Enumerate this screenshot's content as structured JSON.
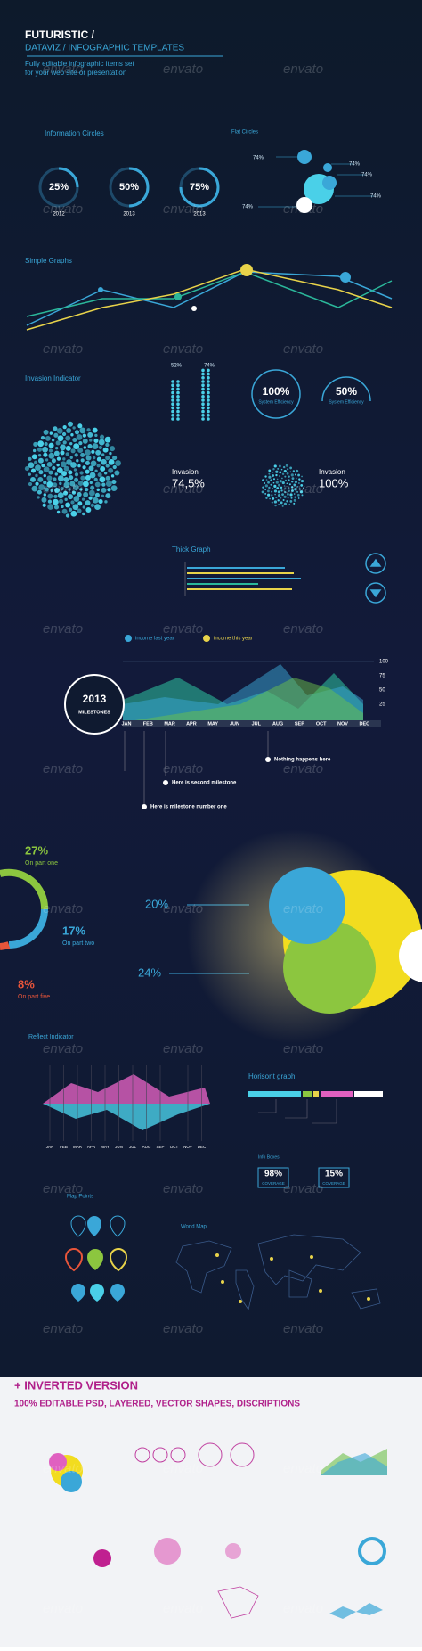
{
  "header": {
    "title": "FUTURISTIC /",
    "subtitle": "DATAVIZ / INFOGRAPHIC TEMPLATES",
    "tagline": [
      "Fully editable infographic items set",
      "for your web site or presentation"
    ]
  },
  "watermark": "envato",
  "info_circles": {
    "title": "Information Circles",
    "items": [
      {
        "label": "25%",
        "year": "2012"
      },
      {
        "label": "50%",
        "year": "2013"
      },
      {
        "label": "75%",
        "year": "2013"
      }
    ]
  },
  "flat_circles": {
    "title": "Flat Circles",
    "labels": [
      "74%",
      "74%",
      "74%",
      "74%",
      "74%"
    ]
  },
  "simple_graphs": {
    "title": "Simple Graphs"
  },
  "invasion": {
    "title": "Invasion Indicator",
    "bars": [
      "52%",
      "74%"
    ],
    "efficiency": [
      {
        "value": "100%",
        "label": "System Efficiency"
      },
      {
        "value": "50%",
        "label": "System Efficiency"
      }
    ],
    "items": [
      {
        "label": "Invasion",
        "value": "74,5%"
      },
      {
        "label": "Invasion",
        "value": "100%"
      }
    ]
  },
  "thick_graph": {
    "title": "Thick Graph"
  },
  "milestones": {
    "legend": [
      "income last year",
      "income this year"
    ],
    "axis": [
      100,
      75,
      50,
      25
    ],
    "months": [
      "JAN",
      "FEB",
      "MAR",
      "APR",
      "MAY",
      "JUN",
      "JUL",
      "AUG",
      "SEP",
      "OCT",
      "NOV",
      "DEC"
    ],
    "year": "2013",
    "label": "MILESTONES",
    "notes": [
      "Nothing happens here",
      "Here is second milestone",
      "Here is milestone number one"
    ]
  },
  "parts": {
    "items": [
      {
        "value": "27%",
        "label": "On part one"
      },
      {
        "value": "17%",
        "label": "On part two"
      },
      {
        "value": "8%",
        "label": "On part five"
      }
    ],
    "callouts": [
      "20%",
      "24%"
    ]
  },
  "reflect": {
    "title": "Reflect Indicator"
  },
  "horisont": {
    "title": "Horisont graph"
  },
  "info_boxes": {
    "title": "Info Boxes",
    "items": [
      {
        "value": "98%",
        "label": "COVERAGE"
      },
      {
        "value": "15%",
        "label": "COVERAGE"
      }
    ]
  },
  "map_points": {
    "title": "Map Points"
  },
  "world_map": {
    "title": "World Map"
  },
  "inverted": {
    "title": "+ INVERTED VERSION",
    "subtitle": "100% EDITABLE PSD, LAYERED, VECTOR SHAPES, DISCRIPTIONS"
  }
}
